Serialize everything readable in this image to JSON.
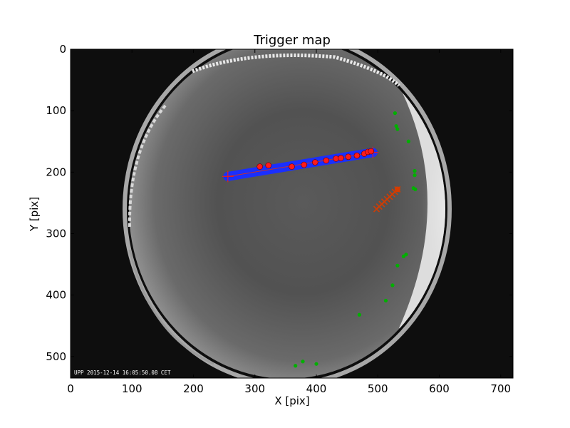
{
  "chart_data": {
    "type": "scatter",
    "title": "Trigger map",
    "xlabel": "X [pix]",
    "ylabel": "Y [pix]",
    "xlim": [
      0,
      720
    ],
    "ylim": [
      535,
      0
    ],
    "xticks": [
      0,
      100,
      200,
      300,
      400,
      500,
      600,
      700
    ],
    "yticks": [
      0,
      100,
      200,
      300,
      400,
      500
    ],
    "grid": false,
    "background": "all-sky camera image (fisheye)",
    "timestamp": "UPP 2015-12-14 16:05:50.08 CET",
    "meteor_track_start": [
      256,
      207
    ],
    "meteor_track_end": [
      492,
      168
    ],
    "trigger_points_red": [
      [
        308,
        191
      ],
      [
        322,
        189
      ],
      [
        360,
        191
      ],
      [
        380,
        188
      ],
      [
        398,
        184
      ],
      [
        416,
        181
      ],
      [
        432,
        178
      ],
      [
        440,
        177
      ],
      [
        452,
        175
      ],
      [
        466,
        173
      ],
      [
        478,
        170
      ],
      [
        484,
        167
      ],
      [
        489,
        166
      ]
    ],
    "secondary_track_start": [
      498,
      260
    ],
    "secondary_track_end": [
      532,
      228
    ],
    "green_points": [
      [
        528,
        104
      ],
      [
        530,
        125
      ],
      [
        532,
        130
      ],
      [
        550,
        150
      ],
      [
        560,
        198
      ],
      [
        560,
        205
      ],
      [
        558,
        226
      ],
      [
        561,
        228
      ],
      [
        546,
        334
      ],
      [
        542,
        337
      ],
      [
        532,
        352
      ],
      [
        524,
        384
      ],
      [
        513,
        409
      ],
      [
        470,
        432
      ],
      [
        378,
        508
      ],
      [
        400,
        512
      ],
      [
        366,
        515
      ]
    ],
    "colors": {
      "track_fill": "#1a2fff",
      "red_points": "#ff1a1a",
      "green_points": "#00b000",
      "secondary_track": "#d43c00",
      "frame": "#000000"
    }
  }
}
